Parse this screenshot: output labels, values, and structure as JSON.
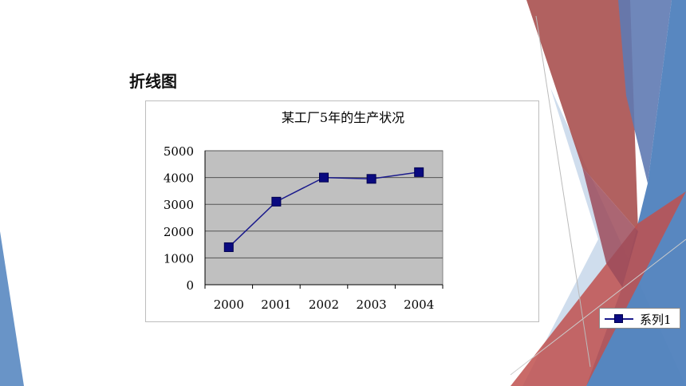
{
  "heading": "折线图",
  "chart_data": {
    "type": "line",
    "title": "某工厂5年的生产状况",
    "categories": [
      "2000",
      "2001",
      "2002",
      "2003",
      "2004"
    ],
    "series": [
      {
        "name": "系列1",
        "values": [
          1400,
          3100,
          4000,
          3950,
          4200
        ]
      }
    ],
    "ylim": [
      0,
      5000
    ],
    "yticks": [
      0,
      1000,
      2000,
      3000,
      4000,
      5000
    ],
    "xlabel": "",
    "ylabel": "",
    "grid": true,
    "legend": "right",
    "plot_background": "#c0c0c0",
    "line_color": "#1a1a8c",
    "marker_color": "#0a0a80"
  },
  "colors": {
    "decor_blue": "#4f81bd",
    "decor_red": "#c0504d",
    "decor_light_blue": "#c7d7ea"
  }
}
